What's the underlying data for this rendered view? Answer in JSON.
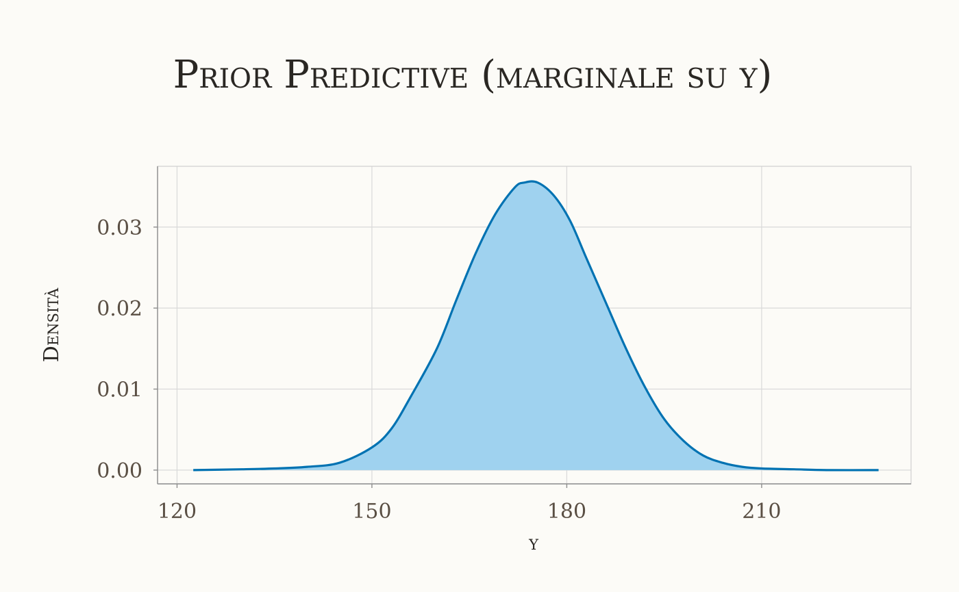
{
  "chart_data": {
    "type": "area",
    "title": "Prior Predictive (marginale su y)",
    "xlabel": "y",
    "ylabel": "Densità",
    "xlim": [
      117,
      233
    ],
    "ylim": [
      -0.0017,
      0.0375
    ],
    "grid": true,
    "x_ticks": [
      120,
      150,
      180,
      210
    ],
    "x_tick_labels": [
      "120",
      "150",
      "180",
      "210"
    ],
    "y_ticks": [
      0.0,
      0.01,
      0.02,
      0.03
    ],
    "y_tick_labels": [
      "0.00",
      "0.01",
      "0.02",
      "0.03"
    ],
    "series": [
      {
        "x": [
          122.5,
          130,
          135,
          140,
          145,
          150,
          153,
          156,
          160,
          163,
          166,
          169,
          172,
          173.5,
          175.5,
          178,
          180.5,
          183,
          186,
          189,
          192,
          195,
          198,
          201,
          204,
          207,
          210,
          215,
          220,
          228
        ],
        "y": [
          0.0,
          0.0001,
          0.0002,
          0.0004,
          0.0009,
          0.0028,
          0.0051,
          0.0091,
          0.015,
          0.021,
          0.0268,
          0.0316,
          0.0349,
          0.0355,
          0.0355,
          0.0339,
          0.0308,
          0.0262,
          0.0207,
          0.0152,
          0.0103,
          0.0063,
          0.0036,
          0.0018,
          0.0009,
          0.0004,
          0.0002,
          0.0001,
          0.0,
          0.0
        ]
      }
    ],
    "colors": {
      "fill": "#9fd2ef",
      "line": "#0072b2",
      "background": "#fcfbf7"
    }
  }
}
